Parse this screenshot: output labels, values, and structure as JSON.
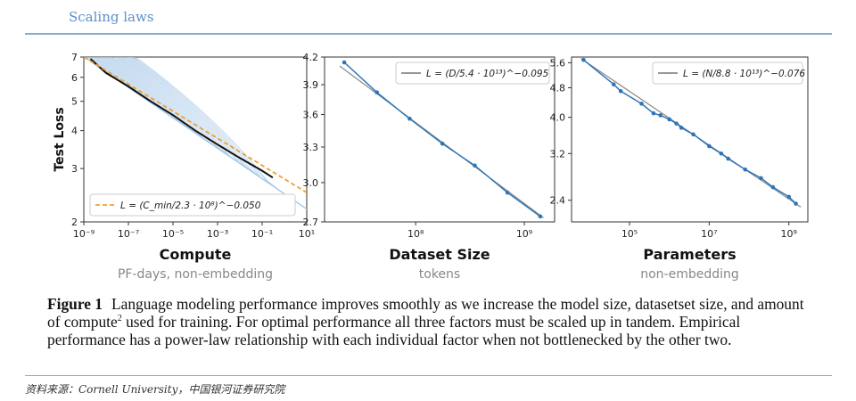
{
  "header": {
    "title": "Scaling laws"
  },
  "caption": {
    "figure_label": "Figure 1",
    "text_1": "Language modeling performance improves smoothly as we increase the model size, datasetset size, and amount of compute",
    "footnote_mark": "2",
    "text_2": " used for training. For optimal performance all three factors must be scaled up in tandem. Empirical performance has a power-law relationship with each individual factor when not bottlenecked by the other two."
  },
  "source": "资料来源：Cornell University，中国银河证券研究院",
  "colors": {
    "header": "#5b8fc7",
    "series": "#2e75b6",
    "fit": "#888888",
    "compute_fit": "#f0a030",
    "curves": "#a9c9e8"
  },
  "chart_data": [
    {
      "type": "line",
      "ylabel": "Test Loss",
      "xlabel": "Compute",
      "xsublabel": "PF-days, non-embedding",
      "xscale": "log",
      "yscale": "log",
      "xlim": [
        1e-09,
        10
      ],
      "ylim": [
        2,
        7
      ],
      "x_ticks": [
        "10⁻⁹",
        "10⁻⁷",
        "10⁻⁵",
        "10⁻³",
        "10⁻¹",
        "10¹"
      ],
      "y_ticks": [
        "2",
        "3",
        "4",
        "5",
        "6",
        "7"
      ],
      "legend": {
        "position": "bottom-left",
        "label": "L = (C_min/2.3 · 10⁸)^−0.050"
      },
      "frontier": {
        "x": [
          2e-09,
          1e-08,
          1e-07,
          1e-06,
          1e-05,
          0.0001,
          0.001,
          0.01,
          0.1,
          0.3
        ],
        "y": [
          6.9,
          6.2,
          5.6,
          5.0,
          4.5,
          4.0,
          3.6,
          3.25,
          2.95,
          2.8
        ]
      },
      "fit": {
        "x": [
          1e-09,
          10
        ],
        "y": [
          7.0,
          2.5
        ]
      }
    },
    {
      "type": "line",
      "xlabel": "Dataset Size",
      "xsublabel": "tokens",
      "xscale": "log",
      "yscale": "log",
      "ylim": [
        2.7,
        4.2
      ],
      "y_ticks": [
        "2.7",
        "3.0",
        "3.3",
        "3.6",
        "3.9",
        "4.2"
      ],
      "x_ticks": [
        "10⁸",
        "10⁹"
      ],
      "legend": {
        "position": "top-right",
        "label": "L = (D/5.4 · 10¹³)^−0.095"
      },
      "series": [
        {
          "x": [
            22000000.0,
            44000000.0,
            88000000.0,
            176000000.0,
            350000000.0,
            700000000.0,
            1400000000.0
          ],
          "y": [
            4.14,
            3.82,
            3.56,
            3.33,
            3.14,
            2.92,
            2.74
          ]
        }
      ],
      "fit": {
        "x": [
          20000000.0,
          1500000000.0
        ],
        "y": [
          4.1,
          2.73
        ]
      }
    },
    {
      "type": "line",
      "xlabel": "Parameters",
      "xsublabel": "non-embedding",
      "xscale": "log",
      "yscale": "log",
      "ylim": [
        2.1,
        5.8
      ],
      "y_ticks": [
        "2.4",
        "3.2",
        "4.0",
        "4.8",
        "5.6"
      ],
      "x_ticks": [
        "10⁵",
        "10⁷",
        "10⁹"
      ],
      "legend": {
        "position": "top-right",
        "label": "L = (N/8.8 · 10¹³)^−0.076"
      },
      "series": [
        {
          "x": [
            7000.0,
            40000.0,
            60000.0,
            200000.0,
            400000.0,
            600000.0,
            1000000.0,
            1500000.0,
            2000000.0,
            4000000.0,
            10000000.0,
            20000000.0,
            30000000.0,
            80000000.0,
            200000000.0,
            400000000.0,
            1000000000.0,
            1500000000.0
          ],
          "y": [
            5.7,
            4.9,
            4.7,
            4.35,
            4.1,
            4.05,
            3.95,
            3.85,
            3.75,
            3.6,
            3.35,
            3.2,
            3.1,
            2.9,
            2.75,
            2.6,
            2.45,
            2.35
          ]
        }
      ],
      "fit": {
        "x": [
          6000.0,
          2000000000.0
        ],
        "y": [
          5.75,
          2.3
        ]
      }
    }
  ]
}
